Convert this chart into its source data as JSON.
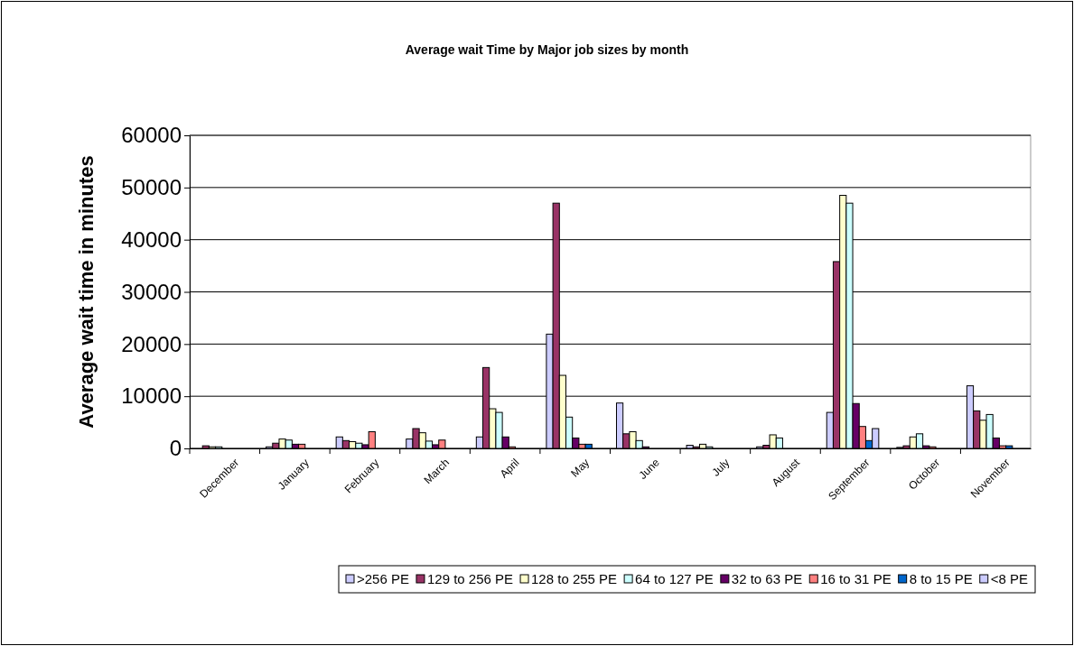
{
  "chart_data": {
    "type": "bar",
    "title": "Average wait Time by Major job sizes by month",
    "ylabel": "Average wait time in minutes",
    "categories": [
      "December",
      "January",
      "February",
      "March",
      "April",
      "May",
      "June",
      "July",
      "August",
      "September",
      "October",
      "November"
    ],
    "series": [
      {
        "name": ">256 PE",
        "color": "#ccccff",
        "values": [
          0,
          300,
          2200,
          1800,
          2200,
          21900,
          8700,
          600,
          300,
          6900,
          200,
          12000
        ]
      },
      {
        "name": "129 to 256 PE",
        "color": "#993366",
        "values": [
          500,
          1000,
          1500,
          3800,
          15500,
          47000,
          2800,
          300,
          600,
          35800,
          500,
          7200
        ]
      },
      {
        "name": "128 to 255 PE",
        "color": "#ffffcc",
        "values": [
          300,
          1800,
          1300,
          3000,
          7600,
          14000,
          3200,
          800,
          2600,
          48500,
          2200,
          5400
        ]
      },
      {
        "name": "64 to 127 PE",
        "color": "#ccffff",
        "values": [
          300,
          1600,
          1000,
          1400,
          6900,
          6000,
          1500,
          300,
          2000,
          47000,
          2800,
          6500
        ]
      },
      {
        "name": "32 to 63 PE",
        "color": "#660066",
        "values": [
          0,
          800,
          700,
          700,
          2200,
          2000,
          300,
          0,
          0,
          8600,
          500,
          2000
        ]
      },
      {
        "name": "16 to 31 PE",
        "color": "#ff8080",
        "values": [
          0,
          800,
          3200,
          1600,
          300,
          800,
          0,
          0,
          0,
          4200,
          300,
          500
        ]
      },
      {
        "name": "8 to 15 PE",
        "color": "#0066cc",
        "values": [
          0,
          0,
          0,
          0,
          0,
          800,
          0,
          0,
          0,
          1500,
          0,
          500
        ]
      },
      {
        "name": "<8 PE",
        "color": "#ccccff",
        "values": [
          0,
          0,
          0,
          0,
          0,
          0,
          0,
          0,
          0,
          3800,
          0,
          0
        ]
      }
    ],
    "ylim": [
      0,
      60000
    ],
    "yticks": [
      0,
      10000,
      20000,
      30000,
      40000,
      50000,
      60000
    ],
    "grid": "y",
    "legend": "bottom"
  }
}
